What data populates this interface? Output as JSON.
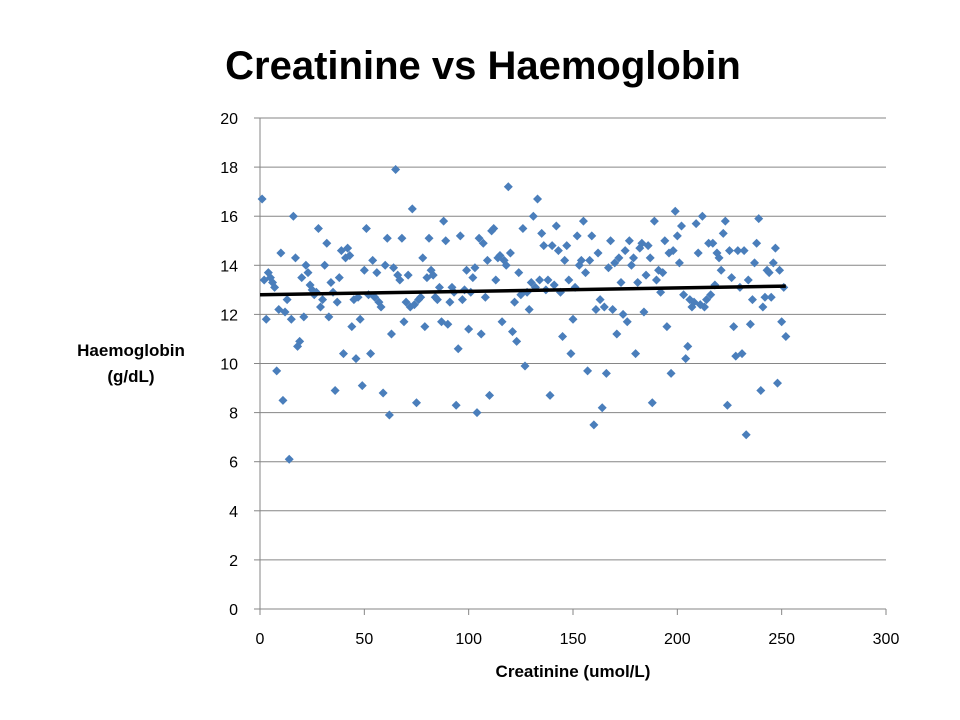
{
  "chart_data": {
    "type": "scatter",
    "title": "Creatinine vs Haemoglobin",
    "xlabel": "Creatinine (umol/L)",
    "ylabel_lines": [
      "Haemoglobin",
      "(g/dL)"
    ],
    "xlim": [
      0,
      300
    ],
    "ylim": [
      0,
      20
    ],
    "xticks": [
      0,
      50,
      100,
      150,
      200,
      250,
      300
    ],
    "yticks": [
      0,
      2,
      4,
      6,
      8,
      10,
      12,
      14,
      16,
      18,
      20
    ],
    "grid": true,
    "marker_color": "#4a7ebb",
    "trendline": {
      "x": [
        0,
        252
      ],
      "y": [
        12.8,
        13.15
      ],
      "color": "#000000"
    },
    "points": [
      [
        1,
        16.7
      ],
      [
        2,
        13.4
      ],
      [
        3,
        11.8
      ],
      [
        4,
        13.7
      ],
      [
        5,
        13.5
      ],
      [
        6,
        13.3
      ],
      [
        7,
        13.1
      ],
      [
        8,
        9.7
      ],
      [
        9,
        12.2
      ],
      [
        10,
        14.5
      ],
      [
        11,
        8.5
      ],
      [
        12,
        12.1
      ],
      [
        13,
        12.6
      ],
      [
        14,
        6.1
      ],
      [
        15,
        11.8
      ],
      [
        16,
        16.0
      ],
      [
        17,
        14.3
      ],
      [
        18,
        10.7
      ],
      [
        19,
        10.9
      ],
      [
        20,
        13.5
      ],
      [
        21,
        11.9
      ],
      [
        22,
        14.0
      ],
      [
        23,
        13.7
      ],
      [
        24,
        13.2
      ],
      [
        25,
        13.0
      ],
      [
        26,
        12.8
      ],
      [
        27,
        12.9
      ],
      [
        28,
        15.5
      ],
      [
        29,
        12.3
      ],
      [
        30,
        12.6
      ],
      [
        31,
        14.0
      ],
      [
        32,
        14.9
      ],
      [
        33,
        11.9
      ],
      [
        34,
        13.3
      ],
      [
        35,
        12.9
      ],
      [
        36,
        8.9
      ],
      [
        37,
        12.5
      ],
      [
        38,
        13.5
      ],
      [
        39,
        14.6
      ],
      [
        40,
        10.4
      ],
      [
        41,
        14.3
      ],
      [
        42,
        14.7
      ],
      [
        43,
        14.4
      ],
      [
        44,
        11.5
      ],
      [
        45,
        12.6
      ],
      [
        46,
        10.2
      ],
      [
        47,
        12.7
      ],
      [
        48,
        11.8
      ],
      [
        49,
        9.1
      ],
      [
        50,
        13.8
      ],
      [
        51,
        15.5
      ],
      [
        52,
        12.8
      ],
      [
        53,
        10.4
      ],
      [
        54,
        14.2
      ],
      [
        55,
        12.7
      ],
      [
        56,
        13.7
      ],
      [
        57,
        12.5
      ],
      [
        58,
        12.3
      ],
      [
        59,
        8.8
      ],
      [
        60,
        14.0
      ],
      [
        61,
        15.1
      ],
      [
        62,
        7.9
      ],
      [
        63,
        11.2
      ],
      [
        64,
        13.9
      ],
      [
        65,
        17.9
      ],
      [
        66,
        13.6
      ],
      [
        67,
        13.4
      ],
      [
        68,
        15.1
      ],
      [
        69,
        11.7
      ],
      [
        70,
        12.5
      ],
      [
        71,
        13.6
      ],
      [
        72,
        12.3
      ],
      [
        73,
        16.3
      ],
      [
        74,
        12.4
      ],
      [
        75,
        8.4
      ],
      [
        76,
        12.6
      ],
      [
        77,
        12.7
      ],
      [
        78,
        14.3
      ],
      [
        79,
        11.5
      ],
      [
        80,
        13.5
      ],
      [
        81,
        15.1
      ],
      [
        82,
        13.8
      ],
      [
        83,
        13.6
      ],
      [
        84,
        12.7
      ],
      [
        85,
        12.6
      ],
      [
        86,
        13.1
      ],
      [
        87,
        11.7
      ],
      [
        88,
        15.8
      ],
      [
        89,
        15.0
      ],
      [
        90,
        11.6
      ],
      [
        91,
        12.5
      ],
      [
        92,
        13.1
      ],
      [
        93,
        12.9
      ],
      [
        94,
        8.3
      ],
      [
        95,
        10.6
      ],
      [
        96,
        15.2
      ],
      [
        97,
        12.6
      ],
      [
        98,
        13.0
      ],
      [
        99,
        13.8
      ],
      [
        100,
        11.4
      ],
      [
        101,
        12.9
      ],
      [
        102,
        13.5
      ],
      [
        103,
        13.9
      ],
      [
        104,
        8.0
      ],
      [
        105,
        15.1
      ],
      [
        106,
        11.2
      ],
      [
        107,
        14.9
      ],
      [
        108,
        12.7
      ],
      [
        109,
        14.2
      ],
      [
        110,
        8.7
      ],
      [
        111,
        15.4
      ],
      [
        112,
        15.5
      ],
      [
        113,
        13.4
      ],
      [
        114,
        14.3
      ],
      [
        115,
        14.4
      ],
      [
        116,
        11.7
      ],
      [
        117,
        14.2
      ],
      [
        118,
        14.0
      ],
      [
        119,
        17.2
      ],
      [
        120,
        14.5
      ],
      [
        121,
        11.3
      ],
      [
        122,
        12.5
      ],
      [
        123,
        10.9
      ],
      [
        124,
        13.7
      ],
      [
        125,
        12.8
      ],
      [
        126,
        15.5
      ],
      [
        127,
        9.9
      ],
      [
        128,
        12.9
      ],
      [
        129,
        12.2
      ],
      [
        130,
        13.3
      ],
      [
        131,
        16.0
      ],
      [
        132,
        13.1
      ],
      [
        133,
        16.7
      ],
      [
        134,
        13.4
      ],
      [
        135,
        15.3
      ],
      [
        136,
        14.8
      ],
      [
        137,
        13.0
      ],
      [
        138,
        13.4
      ],
      [
        139,
        8.7
      ],
      [
        140,
        14.8
      ],
      [
        141,
        13.2
      ],
      [
        142,
        15.6
      ],
      [
        143,
        14.6
      ],
      [
        144,
        12.9
      ],
      [
        145,
        11.1
      ],
      [
        146,
        14.2
      ],
      [
        147,
        14.8
      ],
      [
        148,
        13.4
      ],
      [
        149,
        10.4
      ],
      [
        150,
        11.8
      ],
      [
        151,
        13.1
      ],
      [
        152,
        15.2
      ],
      [
        153,
        14.0
      ],
      [
        154,
        14.2
      ],
      [
        155,
        15.8
      ],
      [
        156,
        13.7
      ],
      [
        157,
        9.7
      ],
      [
        158,
        14.2
      ],
      [
        159,
        15.2
      ],
      [
        160,
        7.5
      ],
      [
        161,
        12.2
      ],
      [
        162,
        14.5
      ],
      [
        163,
        12.6
      ],
      [
        164,
        8.2
      ],
      [
        165,
        12.3
      ],
      [
        166,
        9.6
      ],
      [
        167,
        13.9
      ],
      [
        168,
        15.0
      ],
      [
        169,
        12.2
      ],
      [
        170,
        14.1
      ],
      [
        171,
        11.2
      ],
      [
        172,
        14.3
      ],
      [
        173,
        13.3
      ],
      [
        174,
        12.0
      ],
      [
        175,
        14.6
      ],
      [
        176,
        11.7
      ],
      [
        177,
        15.0
      ],
      [
        178,
        14.0
      ],
      [
        179,
        14.3
      ],
      [
        180,
        10.4
      ],
      [
        181,
        13.3
      ],
      [
        182,
        14.7
      ],
      [
        183,
        14.9
      ],
      [
        184,
        12.1
      ],
      [
        185,
        13.6
      ],
      [
        186,
        14.8
      ],
      [
        187,
        14.3
      ],
      [
        188,
        8.4
      ],
      [
        189,
        15.8
      ],
      [
        190,
        13.4
      ],
      [
        191,
        13.8
      ],
      [
        192,
        12.9
      ],
      [
        193,
        13.7
      ],
      [
        194,
        15.0
      ],
      [
        195,
        11.5
      ],
      [
        196,
        14.5
      ],
      [
        197,
        9.6
      ],
      [
        198,
        14.6
      ],
      [
        199,
        16.2
      ],
      [
        200,
        15.2
      ],
      [
        201,
        14.1
      ],
      [
        202,
        15.6
      ],
      [
        203,
        12.8
      ],
      [
        204,
        10.2
      ],
      [
        205,
        10.7
      ],
      [
        206,
        12.6
      ],
      [
        207,
        12.3
      ],
      [
        208,
        12.5
      ],
      [
        209,
        15.7
      ],
      [
        210,
        14.5
      ],
      [
        211,
        12.4
      ],
      [
        212,
        16.0
      ],
      [
        213,
        12.3
      ],
      [
        214,
        12.6
      ],
      [
        215,
        14.9
      ],
      [
        216,
        12.8
      ],
      [
        217,
        14.9
      ],
      [
        218,
        13.2
      ],
      [
        219,
        14.5
      ],
      [
        220,
        14.3
      ],
      [
        221,
        13.8
      ],
      [
        222,
        15.3
      ],
      [
        223,
        15.8
      ],
      [
        224,
        8.3
      ],
      [
        225,
        14.6
      ],
      [
        226,
        13.5
      ],
      [
        227,
        11.5
      ],
      [
        228,
        10.3
      ],
      [
        229,
        14.6
      ],
      [
        230,
        13.1
      ],
      [
        231,
        10.4
      ],
      [
        232,
        14.6
      ],
      [
        233,
        7.1
      ],
      [
        234,
        13.4
      ],
      [
        235,
        11.6
      ],
      [
        236,
        12.6
      ],
      [
        237,
        14.1
      ],
      [
        238,
        14.9
      ],
      [
        239,
        15.9
      ],
      [
        240,
        8.9
      ],
      [
        241,
        12.3
      ],
      [
        242,
        12.7
      ],
      [
        243,
        13.8
      ],
      [
        244,
        13.7
      ],
      [
        245,
        12.7
      ],
      [
        246,
        14.1
      ],
      [
        247,
        14.7
      ],
      [
        248,
        9.2
      ],
      [
        249,
        13.8
      ],
      [
        250,
        11.7
      ],
      [
        251,
        13.1
      ],
      [
        252,
        11.1
      ]
    ]
  }
}
